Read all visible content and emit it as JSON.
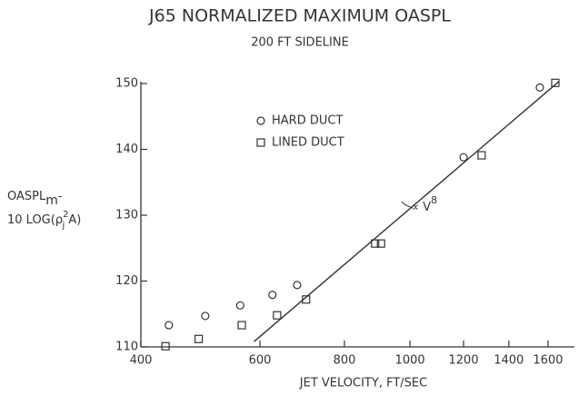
{
  "chart_data": {
    "type": "scatter",
    "title": "J65 NORMALIZED MAXIMUM OASPL",
    "subtitle": "200 FT SIDELINE",
    "x_label": "JET VELOCITY, FT/SEC",
    "y_label": [
      {
        "main": "OASPL",
        "sub": "m",
        "tail": "-"
      },
      {
        "main": "10 LOG(ρ",
        "sup": "2",
        "sub": "j",
        "tail": " A)"
      }
    ],
    "x_scale": "log",
    "xlim": [
      400,
      1750
    ],
    "xticks": [
      400,
      600,
      800,
      1000,
      1200,
      1400,
      1600
    ],
    "ylim": [
      110,
      150
    ],
    "yticks": [
      110,
      120,
      130,
      140,
      150
    ],
    "color": "#333333",
    "legend": "upper left",
    "series": [
      {
        "name": "HARD DUCT",
        "marker": "circle",
        "x": [
          440,
          498,
          561,
          626,
          681,
          1200,
          1556
        ],
        "values": [
          113.3,
          114.7,
          116.3,
          117.9,
          119.4,
          138.8,
          149.4
        ]
      },
      {
        "name": "LINED DUCT",
        "marker": "square",
        "x": [
          435,
          487,
          564,
          636,
          702,
          888,
          906,
          1276,
          1640
        ],
        "values": [
          110.1,
          111.2,
          113.3,
          114.8,
          117.2,
          125.7,
          125.7,
          139.1,
          150.1
        ]
      }
    ],
    "fit_line": {
      "x": [
        588,
        1660
      ],
      "values": [
        110.8,
        150.3
      ]
    },
    "annotation": {
      "text": "∝ V",
      "sup": "8",
      "x": 1040,
      "y": 131.5
    }
  }
}
